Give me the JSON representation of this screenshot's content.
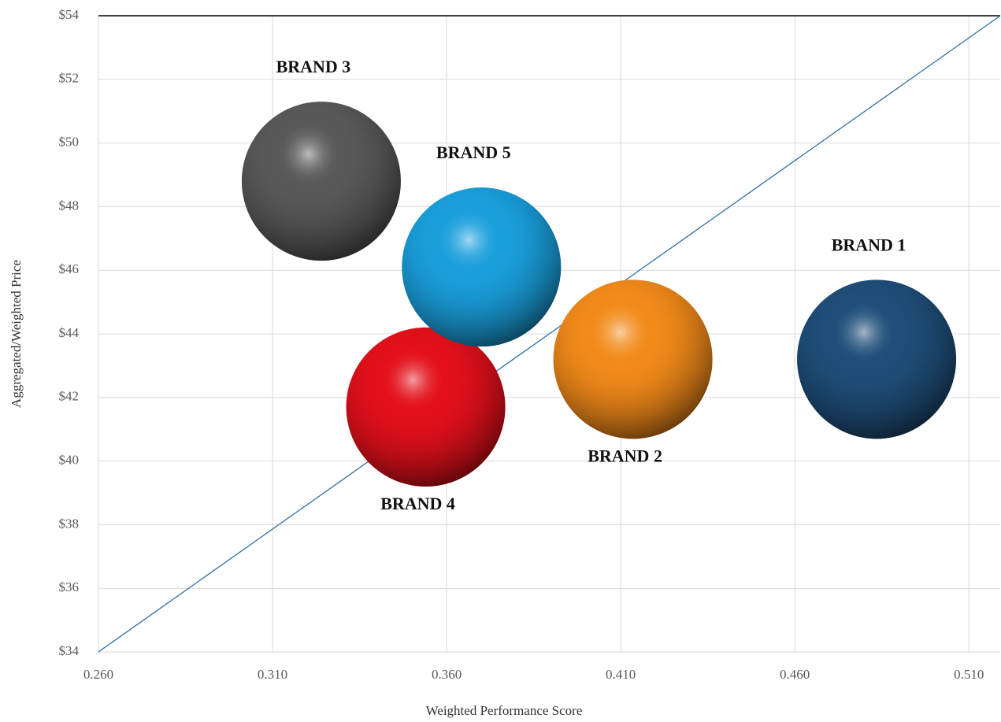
{
  "chart_data": {
    "type": "scatter",
    "xlabel": "Weighted Performance Score",
    "ylabel": "Aggregated/Weighted Price",
    "xlim": [
      0.26,
      0.519
    ],
    "ylim": [
      34,
      54
    ],
    "xticks": [
      {
        "value": 0.26,
        "label": "0.260"
      },
      {
        "value": 0.31,
        "label": "0.310"
      },
      {
        "value": 0.36,
        "label": "0.360"
      },
      {
        "value": 0.41,
        "label": "0.410"
      },
      {
        "value": 0.46,
        "label": "0.460"
      },
      {
        "value": 0.51,
        "label": "0.510"
      }
    ],
    "yticks": [
      {
        "value": 34,
        "label": "$34"
      },
      {
        "value": 36,
        "label": "$36"
      },
      {
        "value": 38,
        "label": "$38"
      },
      {
        "value": 40,
        "label": "$40"
      },
      {
        "value": 42,
        "label": "$42"
      },
      {
        "value": 44,
        "label": "$44"
      },
      {
        "value": 46,
        "label": "$46"
      },
      {
        "value": 48,
        "label": "$48"
      },
      {
        "value": 50,
        "label": "$50"
      },
      {
        "value": 52,
        "label": "$52"
      },
      {
        "value": 54,
        "label": "$54"
      }
    ],
    "grid": true,
    "series": [
      {
        "name": "BRAND 1",
        "color": "#1f4e79",
        "x": [
          0.4835
        ],
        "values": [
          43.2
        ],
        "label_position": "above"
      },
      {
        "name": "BRAND 2",
        "color": "#f28a1a",
        "x": [
          0.4135
        ],
        "values": [
          43.2
        ],
        "label_position": "below"
      },
      {
        "name": "BRAND 3",
        "color": "#595959",
        "x": [
          0.324
        ],
        "values": [
          48.8
        ],
        "label_position": "above"
      },
      {
        "name": "BRAND 4",
        "color": "#e3101b",
        "x": [
          0.354
        ],
        "values": [
          41.7
        ],
        "label_position": "below"
      },
      {
        "name": "BRAND 5",
        "color": "#1a9fdc",
        "x": [
          0.37
        ],
        "values": [
          46.1
        ],
        "label_position": "above"
      }
    ],
    "trendline": {
      "color": "#2e6da4",
      "x": [
        0.26,
        0.519
      ],
      "y": [
        34,
        54
      ]
    }
  }
}
